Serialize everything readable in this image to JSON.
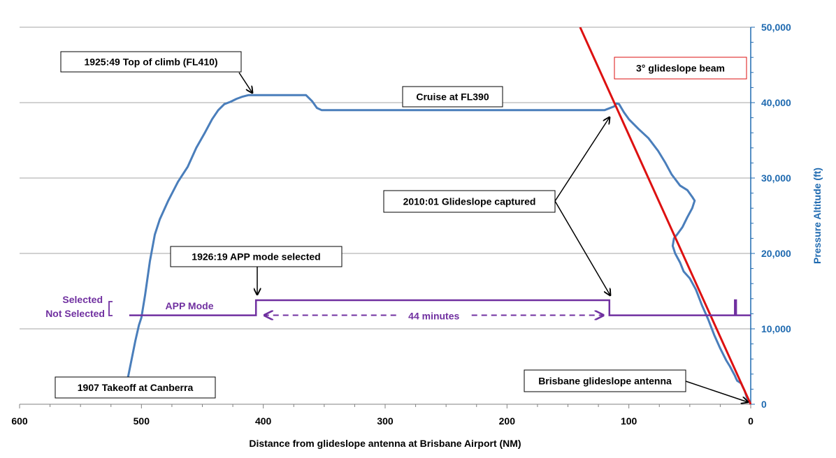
{
  "chart_data": {
    "type": "line",
    "xlabel": "Distance from glideslope antenna at Brisbane Airport (NM)",
    "ylabel": "Pressure Altitude (ft)",
    "xlim": [
      600,
      0
    ],
    "ylim": [
      0,
      50000
    ],
    "x_ticks": [
      600,
      500,
      400,
      300,
      200,
      100,
      0
    ],
    "y_ticks": [
      0,
      10000,
      20000,
      30000,
      40000,
      50000
    ],
    "y_tick_labels": [
      "0",
      "10,000",
      "20,000",
      "30,000",
      "40,000",
      "50,000"
    ],
    "y_axis_side": "right",
    "grid": "horizontal",
    "colors": {
      "altitude": "#4a7ebb",
      "glideslope": "#dd1111",
      "app_mode": "#7030a0",
      "axis_blue": "#1f6ab0"
    },
    "series": [
      {
        "key": "altitude",
        "x": [
          511,
          508,
          505,
          502,
          500,
          497,
          493,
          489,
          485,
          478,
          470,
          462,
          455,
          448,
          442,
          437,
          432,
          427,
          422,
          417,
          412,
          408,
          403,
          395,
          380,
          365,
          360,
          356,
          352,
          330,
          300,
          250,
          200,
          150,
          120,
          112,
          110,
          108,
          104,
          100,
          92,
          84,
          76,
          70,
          65,
          58,
          52,
          48,
          46,
          48,
          52,
          56,
          60,
          63,
          64,
          62,
          58,
          55,
          50,
          45,
          40,
          35,
          30,
          25,
          20,
          17,
          15,
          13,
          12,
          11,
          10,
          9,
          8,
          5,
          3,
          0
        ],
        "y": [
          3600,
          6000,
          8400,
          10500,
          11500,
          14500,
          19000,
          22500,
          24500,
          27000,
          29500,
          31500,
          34000,
          36000,
          37800,
          39000,
          39800,
          40100,
          40500,
          40800,
          41000,
          41000,
          41000,
          41000,
          41000,
          41000,
          40200,
          39300,
          39000,
          39000,
          39000,
          39000,
          39000,
          39000,
          39000,
          39500,
          39900,
          39800,
          38700,
          37800,
          36500,
          35300,
          33600,
          32000,
          30500,
          29000,
          28400,
          27500,
          27000,
          26000,
          24800,
          23500,
          22600,
          22000,
          21000,
          20000,
          18800,
          17600,
          16700,
          15200,
          13100,
          11300,
          9200,
          7400,
          5800,
          5000,
          4400,
          3800,
          3400,
          3100,
          3000,
          2900,
          2800,
          1800,
          800,
          0
        ]
      },
      {
        "key": "glideslope",
        "x": [
          140,
          0
        ],
        "y": [
          50000,
          0
        ]
      },
      {
        "key": "app_mode"
      }
    ],
    "app_mode": {
      "start_x": 510,
      "end_x": 0,
      "not_selected_y": 11800,
      "selected_y": 13800,
      "selected_segments": [
        [
          406,
          116
        ],
        [
          13,
          12
        ]
      ]
    },
    "duration_arrow": {
      "from_x": 399,
      "to_x": 121,
      "y": 11800,
      "label": "44 minutes"
    },
    "annotations": [
      {
        "key": "toc",
        "text": "1925:49 Top of climb (FL410)"
      },
      {
        "key": "cruise",
        "text": "Cruise at FL390"
      },
      {
        "key": "gs_label",
        "text": "3° glideslope beam"
      },
      {
        "key": "gs_capt",
        "text": "2010:01 Glideslope captured"
      },
      {
        "key": "app_sel",
        "text": "1926:19 APP mode selected"
      },
      {
        "key": "takeoff",
        "text": "1907 Takeoff at Canberra"
      },
      {
        "key": "antenna",
        "text": "Brisbane glideslope antenna"
      }
    ],
    "mode_labels": {
      "selected": "Selected",
      "not_selected": "Not Selected",
      "series": "APP Mode"
    }
  }
}
